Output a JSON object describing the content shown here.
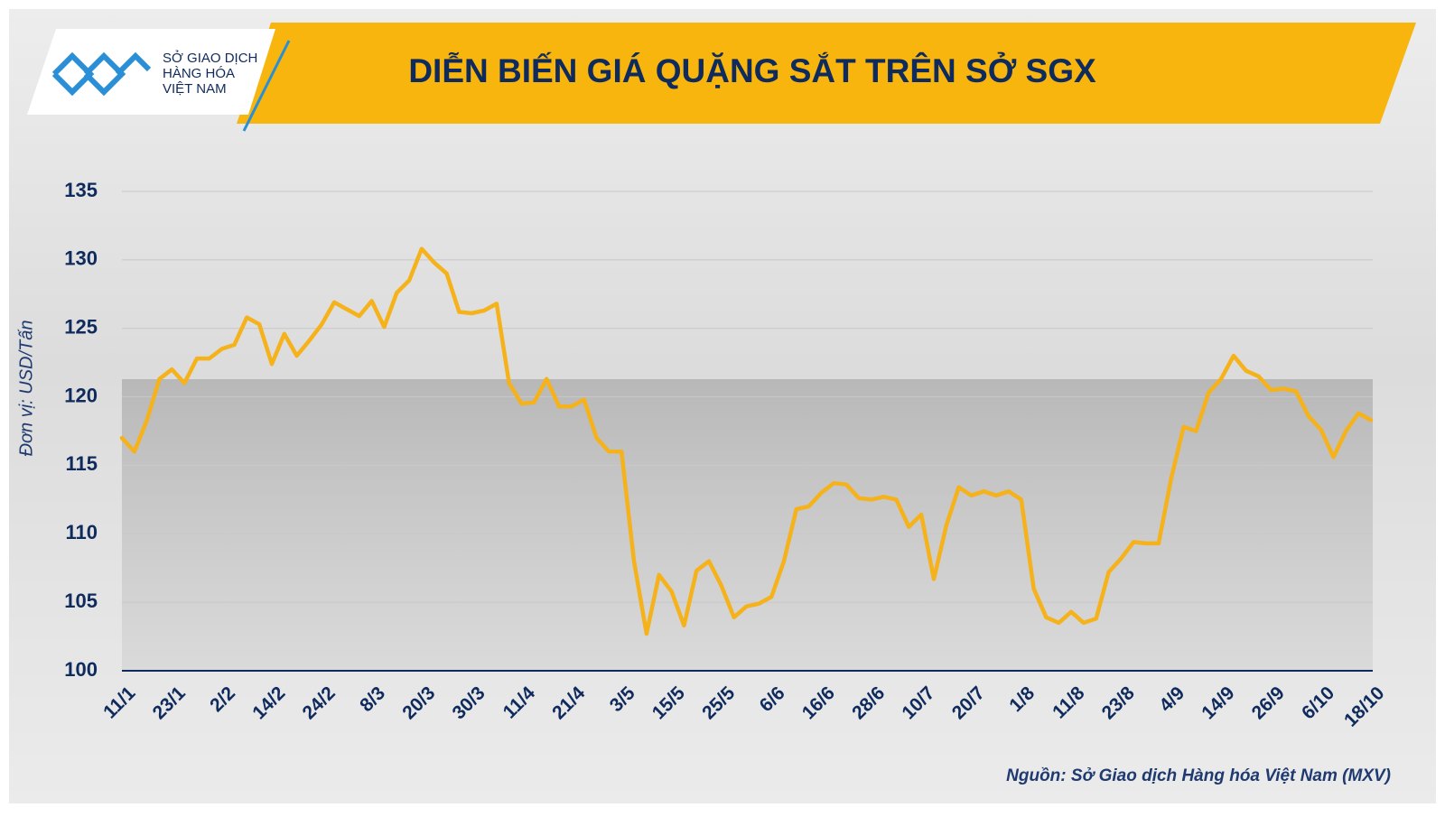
{
  "logo": [
    "SỞ GIAO DỊCH",
    "HÀNG HÓA",
    "VIỆT NAM"
  ],
  "chart_data": {
    "type": "line",
    "title": "DIỄN BIẾN GIÁ QUẶNG SẮT TRÊN SỞ SGX",
    "y_label": "Đơn vị: USD/Tấn",
    "source": "Nguồn: Sở Giao dịch Hàng hóa Việt Nam (MXV)",
    "color": "#f5b21a",
    "grid": true,
    "ylim": [
      100,
      135
    ],
    "yticks": [
      100,
      105,
      110,
      115,
      120,
      125,
      130,
      135
    ],
    "categories": [
      "11/1",
      null,
      null,
      null,
      "23/1",
      null,
      null,
      null,
      "2/2",
      null,
      null,
      null,
      "14/2",
      null,
      null,
      null,
      "24/2",
      null,
      null,
      null,
      "8/3",
      null,
      null,
      null,
      "20/3",
      null,
      null,
      null,
      "30/3",
      null,
      null,
      null,
      "11/4",
      null,
      null,
      null,
      "21/4",
      null,
      null,
      null,
      "3/5",
      null,
      null,
      null,
      "15/5",
      null,
      null,
      null,
      "25/5",
      null,
      null,
      null,
      "6/6",
      null,
      null,
      null,
      "16/6",
      null,
      null,
      null,
      "28/6",
      null,
      null,
      null,
      "10/7",
      null,
      null,
      null,
      "20/7",
      null,
      null,
      null,
      "1/8",
      null,
      null,
      null,
      "11/8",
      null,
      null,
      null,
      "23/8",
      null,
      null,
      null,
      "4/9",
      null,
      null,
      null,
      "14/9",
      null,
      null,
      null,
      "26/9",
      null,
      null,
      null,
      "6/10",
      null,
      null,
      null,
      "18/10"
    ],
    "values": [
      117.0,
      116.0,
      118.3,
      121.3,
      122,
      121,
      122.8,
      122.8,
      123.5,
      123.8,
      125.8,
      125.3,
      122.4,
      124.6,
      123,
      124.1,
      125.3,
      126.9,
      126.4,
      125.9,
      127,
      125.1,
      127.6,
      128.5,
      130.8,
      129.8,
      129,
      126.2,
      126.1,
      126.3,
      126.8,
      121,
      119.5,
      119.6,
      121.3,
      119.3,
      119.3,
      119.8,
      117,
      116,
      116,
      108,
      102.7,
      107,
      105.8,
      103.3,
      107.3,
      108,
      106.2,
      103.9,
      104.7,
      104.9,
      105.4,
      108,
      111.8,
      112,
      113,
      113.7,
      113.6,
      112.6,
      112.5,
      112.7,
      112.5,
      110.5,
      111.4,
      106.7,
      110.6,
      113.4,
      112.8,
      113.1,
      112.8,
      113.1,
      112.5,
      106,
      103.9,
      103.5,
      104.3,
      103.5,
      103.8,
      107.2,
      108.2,
      109.4,
      109.3,
      109.3,
      114,
      117.8,
      117.5,
      120.3,
      121.3,
      123,
      121.9,
      121.5,
      120.5,
      120.6,
      120.4,
      118.6,
      117.6,
      115.6,
      117.5,
      118.8,
      118.3
    ]
  }
}
